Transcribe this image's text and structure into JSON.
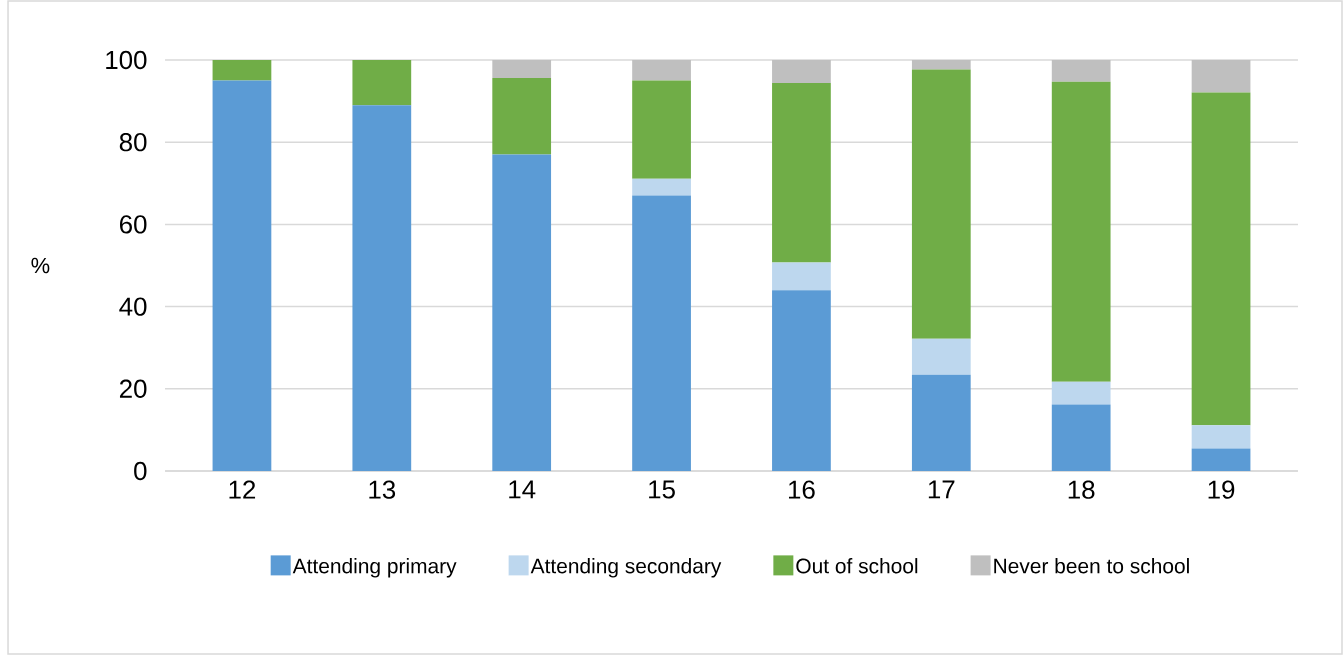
{
  "chart_data": {
    "type": "bar",
    "stacked": true,
    "ylabel": "%",
    "categories": [
      "12",
      "13",
      "14",
      "15",
      "16",
      "17",
      "18",
      "19"
    ],
    "series": [
      {
        "name": "Attending primary",
        "color": "#5b9bd5",
        "values": [
          95,
          89,
          77,
          67,
          44,
          23.4,
          16.2,
          5.5
        ]
      },
      {
        "name": "Attending secondary",
        "color": "#bdd7ee",
        "values": [
          0,
          0,
          0,
          4.1,
          6.7,
          8.8,
          5.5,
          5.6
        ]
      },
      {
        "name": "Out of school",
        "color": "#70ad47",
        "values": [
          5,
          11,
          18.6,
          23.9,
          43.7,
          65.5,
          73,
          81
        ]
      },
      {
        "name": "Never been to school",
        "color": "#bfbfbf",
        "values": [
          0,
          0,
          4.4,
          5,
          5.6,
          2.3,
          5.3,
          7.9
        ]
      }
    ],
    "ylim": [
      0,
      100
    ],
    "yticks": [
      0,
      20,
      40,
      60,
      80,
      100
    ],
    "grid": "y",
    "legend": "bottom"
  }
}
